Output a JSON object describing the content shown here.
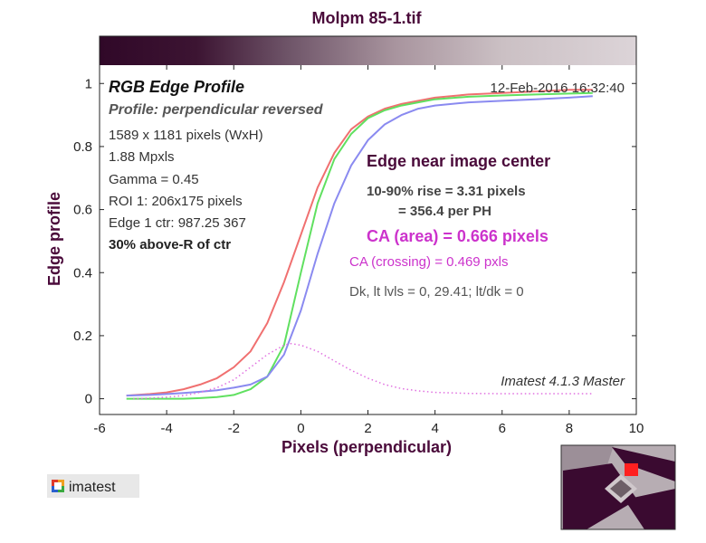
{
  "figure": {
    "title": "Molpm 85-1.tif",
    "panel_title": "RGB Edge Profile",
    "panel_subtitle": "Profile: perpendicular reversed",
    "date": "12-Feb-2016 16:32:40",
    "info_lines": [
      "1589 x 1181 pixels (WxH)",
      "1.88 Mpxls",
      "Gamma = 0.45",
      "ROI 1: 206x175 pixels",
      "Edge 1 ctr: 987.25  367"
    ],
    "location_line": "30% above-R of ctr",
    "edge_heading": "Edge near image center",
    "rise_line1": "10-90% rise = 3.31 pixels",
    "rise_line2": "= 356.4 per PH",
    "ca_area": "CA (area) = 0.666 pixels",
    "ca_crossing": "CA (crossing) = 0.469 pxls",
    "dk_line": "Dk, lt lvls = 0, 29.41;  lt/dk = 0",
    "version": "Imatest 4.1.3  Master",
    "logo_text": "imatest",
    "colors": {
      "red": "#f07070",
      "green": "#60e060",
      "blue": "#8a8af0",
      "difference": "#e070e0",
      "label_purple": "#4a0a3a",
      "ca_magenta": "#cc33cc"
    }
  },
  "chart_data": {
    "type": "line",
    "xlabel": "Pixels (perpendicular)",
    "ylabel": "Edge profile",
    "xlim": [
      -6,
      10
    ],
    "ylim": [
      -0.05,
      1.15
    ],
    "xticks": [
      -6,
      -4,
      -2,
      0,
      2,
      4,
      6,
      8,
      10
    ],
    "yticks": [
      0,
      0.2,
      0.4,
      0.6,
      0.8,
      1
    ],
    "grid": false,
    "legend": "none",
    "series": [
      {
        "color": "#f07070",
        "style": "solid",
        "x": [
          -5.2,
          -4.5,
          -4,
          -3.5,
          -3,
          -2.5,
          -2,
          -1.5,
          -1,
          -0.5,
          0,
          0.5,
          1,
          1.5,
          2,
          2.5,
          3,
          3.5,
          4,
          5,
          6,
          7,
          8,
          8.7
        ],
        "y": [
          0.01,
          0.015,
          0.02,
          0.03,
          0.045,
          0.065,
          0.1,
          0.15,
          0.24,
          0.37,
          0.52,
          0.67,
          0.78,
          0.855,
          0.895,
          0.92,
          0.935,
          0.945,
          0.955,
          0.965,
          0.97,
          0.975,
          0.98,
          0.98
        ]
      },
      {
        "color": "#60e060",
        "style": "solid",
        "x": [
          -5.2,
          -4.5,
          -4,
          -3.5,
          -3,
          -2.5,
          -2,
          -1.5,
          -1,
          -0.5,
          0,
          0.5,
          1,
          1.5,
          2,
          2.5,
          3,
          3.5,
          4,
          5,
          6,
          7,
          8,
          8.7
        ],
        "y": [
          0.0,
          0.0,
          0.0,
          0.0,
          0.002,
          0.005,
          0.012,
          0.03,
          0.07,
          0.17,
          0.4,
          0.62,
          0.76,
          0.84,
          0.89,
          0.915,
          0.93,
          0.94,
          0.95,
          0.958,
          0.962,
          0.965,
          0.968,
          0.97
        ]
      },
      {
        "color": "#8a8af0",
        "style": "solid",
        "x": [
          -5.2,
          -4.5,
          -4,
          -3.5,
          -3,
          -2.5,
          -2,
          -1.5,
          -1,
          -0.5,
          0,
          0.5,
          1,
          1.5,
          2,
          2.5,
          3,
          3.5,
          4,
          5,
          6,
          7,
          8,
          8.7
        ],
        "y": [
          0.01,
          0.012,
          0.015,
          0.018,
          0.022,
          0.027,
          0.035,
          0.045,
          0.07,
          0.14,
          0.28,
          0.46,
          0.62,
          0.74,
          0.82,
          0.87,
          0.9,
          0.92,
          0.93,
          0.94,
          0.945,
          0.95,
          0.955,
          0.96
        ]
      },
      {
        "color": "#e070e0",
        "style": "dotted",
        "x": [
          -5,
          -4.5,
          -4,
          -3.5,
          -3,
          -2.5,
          -2,
          -1.5,
          -1,
          -0.5,
          -0.3,
          0,
          0.5,
          1,
          1.5,
          2,
          2.5,
          3,
          3.5,
          4,
          5,
          6,
          7,
          8,
          8.7
        ],
        "y": [
          0.0,
          0.002,
          0.005,
          0.01,
          0.02,
          0.035,
          0.06,
          0.1,
          0.14,
          0.17,
          0.175,
          0.17,
          0.15,
          0.12,
          0.09,
          0.065,
          0.045,
          0.032,
          0.025,
          0.02,
          0.017,
          0.016,
          0.016,
          0.016,
          0.016
        ]
      }
    ]
  }
}
